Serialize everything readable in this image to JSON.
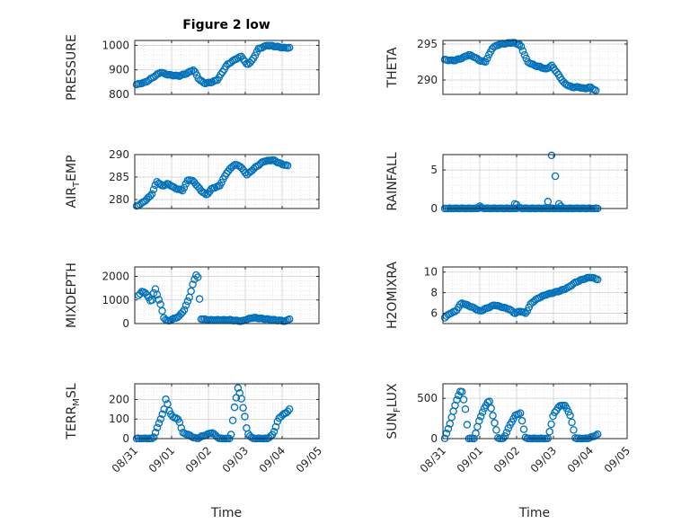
{
  "figure": {
    "title": "Figure 2 low",
    "xlabel": "Time",
    "xtick_labels": [
      "08/31",
      "09/01",
      "09/02",
      "09/03",
      "09/04",
      "09/05"
    ]
  },
  "colors": {
    "marker": "#0072BD",
    "axis": "#262626",
    "grid": "#dcdcdc"
  },
  "chart_data": [
    {
      "type": "scatter",
      "title": "Figure 2 low",
      "ylabel": "PRESSURE",
      "ylabel_sub": "",
      "ylim": [
        800,
        1020
      ],
      "yticks": [
        800,
        900,
        1000
      ],
      "xlim": [
        0,
        5
      ],
      "show_xticklabels": false,
      "xlabel": "",
      "grid": true,
      "kp_x": [
        0.05,
        0.3,
        0.5,
        0.7,
        0.9,
        1.2,
        1.4,
        1.6,
        1.75,
        1.9,
        2.1,
        2.25,
        2.5,
        2.75,
        2.9,
        3.05,
        3.2,
        3.35,
        3.6,
        3.85,
        4.05,
        4.2
      ],
      "kp_y": [
        840,
        850,
        870,
        890,
        880,
        875,
        885,
        900,
        860,
        845,
        850,
        860,
        920,
        945,
        955,
        920,
        940,
        985,
        1000,
        995,
        990,
        990
      ]
    },
    {
      "type": "scatter",
      "title": "",
      "ylabel": "THETA",
      "ylabel_sub": "",
      "ylim": [
        288,
        295.5
      ],
      "yticks": [
        290,
        295
      ],
      "xlim": [
        0,
        5
      ],
      "show_xticklabels": false,
      "xlabel": "",
      "grid": true,
      "kp_x": [
        0.05,
        0.3,
        0.5,
        0.7,
        0.85,
        1.0,
        1.15,
        1.35,
        1.55,
        1.75,
        1.9,
        2.1,
        2.3,
        2.5,
        2.65,
        2.8,
        2.95,
        3.1,
        3.3,
        3.5,
        3.7,
        3.85,
        4.0,
        4.15
      ],
      "kp_y": [
        292.8,
        292.7,
        293.0,
        293.5,
        293.2,
        292.7,
        292.5,
        294.5,
        295.0,
        295.1,
        295.2,
        294.9,
        292.5,
        292.0,
        291.8,
        291.5,
        292.0,
        291.0,
        289.5,
        289.0,
        289.0,
        288.8,
        289.0,
        288.5
      ]
    },
    {
      "type": "scatter",
      "title": "",
      "ylabel": "AIR",
      "ylabel_sub": "T",
      "ylabel_tail": "EMP",
      "ylim": [
        278,
        290
      ],
      "yticks": [
        280,
        285,
        290
      ],
      "xlim": [
        0,
        5
      ],
      "show_xticklabels": false,
      "xlabel": "",
      "grid": true,
      "kp_x": [
        0.05,
        0.25,
        0.45,
        0.6,
        0.75,
        0.9,
        1.1,
        1.3,
        1.45,
        1.6,
        1.8,
        1.95,
        2.1,
        2.3,
        2.5,
        2.7,
        2.85,
        3.05,
        3.25,
        3.5,
        3.75,
        3.95,
        4.15
      ],
      "kp_y": [
        278.5,
        279.5,
        281.0,
        284.0,
        283.0,
        283.5,
        282.5,
        282.0,
        284.5,
        284.0,
        282.0,
        281.0,
        282.5,
        283.0,
        286.0,
        287.8,
        287.5,
        285.5,
        287.0,
        288.5,
        288.8,
        288.0,
        287.5
      ]
    },
    {
      "type": "scatter",
      "title": "",
      "ylabel": "RAINFALL",
      "ylabel_sub": "",
      "ylim": [
        0,
        7
      ],
      "yticks": [
        0,
        5
      ],
      "xlim": [
        0,
        5
      ],
      "show_xticklabels": false,
      "xlabel": "",
      "grid": true,
      "kp_x": [
        0.05,
        0.5,
        0.9,
        1.0,
        1.2,
        1.7,
        1.95,
        2.05,
        2.2,
        2.6,
        3.0,
        3.3,
        3.6,
        4.0,
        4.2
      ],
      "kp_y": [
        0,
        0,
        0,
        0.1,
        0,
        0,
        0,
        0.1,
        0,
        0,
        0,
        0,
        0,
        0,
        0
      ],
      "extra_x": [
        1.0,
        1.95,
        2.0,
        2.85,
        2.95,
        3.05,
        3.15,
        3.2
      ],
      "extra_y": [
        0.3,
        0.6,
        0.5,
        0.9,
        6.9,
        4.2,
        0.6,
        0.3
      ]
    },
    {
      "type": "scatter",
      "title": "",
      "ylabel": "MIXDEPTH",
      "ylabel_sub": "",
      "ylim": [
        0,
        2400
      ],
      "yticks": [
        0,
        1000,
        2000
      ],
      "xlim": [
        0,
        5
      ],
      "show_xticklabels": false,
      "xlabel": "",
      "grid": true,
      "kp_x": [
        0.1,
        0.2,
        0.3,
        0.45,
        0.55,
        0.7,
        0.8,
        0.9,
        1.05,
        1.2,
        1.35,
        1.5,
        1.6,
        1.7,
        1.8,
        2.0,
        2.3,
        2.6,
        2.9,
        3.2,
        3.5,
        3.8,
        4.1,
        4.2
      ],
      "kp_y": [
        1200,
        1350,
        1300,
        900,
        1500,
        800,
        200,
        100,
        200,
        300,
        600,
        1200,
        1800,
        2200,
        200,
        150,
        150,
        150,
        100,
        250,
        200,
        150,
        100,
        200
      ]
    },
    {
      "type": "scatter",
      "title": "",
      "ylabel": "H2OMIXRA",
      "ylabel_sub": "",
      "ylim": [
        5,
        10.5
      ],
      "yticks": [
        6,
        8,
        10
      ],
      "xlim": [
        0,
        5
      ],
      "show_xticklabels": false,
      "xlabel": "",
      "grid": true,
      "kp_x": [
        0.05,
        0.2,
        0.35,
        0.5,
        0.65,
        0.85,
        1.0,
        1.2,
        1.4,
        1.6,
        1.8,
        1.95,
        2.1,
        2.25,
        2.4,
        2.6,
        2.8,
        3.0,
        3.2,
        3.4,
        3.6,
        3.8,
        4.0,
        4.2
      ],
      "kp_y": [
        5.6,
        6.0,
        6.2,
        7.0,
        6.8,
        6.5,
        6.2,
        6.5,
        6.8,
        6.6,
        6.4,
        6.0,
        6.2,
        6.0,
        7.0,
        7.5,
        7.8,
        8.0,
        8.2,
        8.5,
        9.0,
        9.3,
        9.5,
        9.3
      ]
    },
    {
      "type": "scatter",
      "title": "",
      "ylabel": "TERR",
      "ylabel_sub": "M",
      "ylabel_tail": "SL",
      "ylim": [
        0,
        280
      ],
      "yticks": [
        0,
        100,
        200
      ],
      "xlim": [
        0,
        5
      ],
      "show_xticklabels": true,
      "xlabel": "Time",
      "grid": true,
      "kp_x": [
        0.05,
        0.3,
        0.5,
        0.6,
        0.7,
        0.8,
        0.85,
        0.95,
        1.05,
        1.15,
        1.2,
        1.3,
        1.45,
        1.6,
        1.7,
        1.8,
        1.95,
        2.1,
        2.3,
        2.45,
        2.6,
        2.7,
        2.8,
        2.9,
        3.0,
        3.05,
        3.2,
        3.4,
        3.6,
        3.75,
        3.9,
        4.0,
        4.1,
        4.2
      ],
      "kp_y": [
        0,
        0,
        0,
        50,
        100,
        150,
        210,
        130,
        110,
        100,
        95,
        30,
        20,
        5,
        0,
        10,
        20,
        30,
        0,
        0,
        0,
        150,
        260,
        200,
        100,
        30,
        0,
        0,
        0,
        20,
        100,
        120,
        130,
        150
      ]
    },
    {
      "type": "scatter",
      "title": "",
      "ylabel": "SUN",
      "ylabel_sub": "F",
      "ylabel_tail": "LUX",
      "ylim": [
        0,
        680
      ],
      "yticks": [
        0,
        500
      ],
      "xlim": [
        0,
        5
      ],
      "show_xticklabels": true,
      "xlabel": "Time",
      "grid": true,
      "kp_x": [
        0.05,
        0.2,
        0.35,
        0.5,
        0.6,
        0.7,
        0.85,
        1.0,
        1.15,
        1.25,
        1.35,
        1.5,
        1.65,
        1.8,
        1.95,
        2.1,
        2.25,
        2.4,
        2.55,
        2.7,
        2.85,
        3.0,
        3.15,
        3.3,
        3.45,
        3.6,
        3.75,
        3.9,
        4.05,
        4.2
      ],
      "kp_y": [
        0,
        200,
        450,
        620,
        400,
        0,
        0,
        250,
        400,
        480,
        300,
        0,
        0,
        150,
        280,
        320,
        0,
        0,
        0,
        0,
        0,
        300,
        400,
        420,
        300,
        0,
        0,
        0,
        20,
        50
      ]
    }
  ]
}
